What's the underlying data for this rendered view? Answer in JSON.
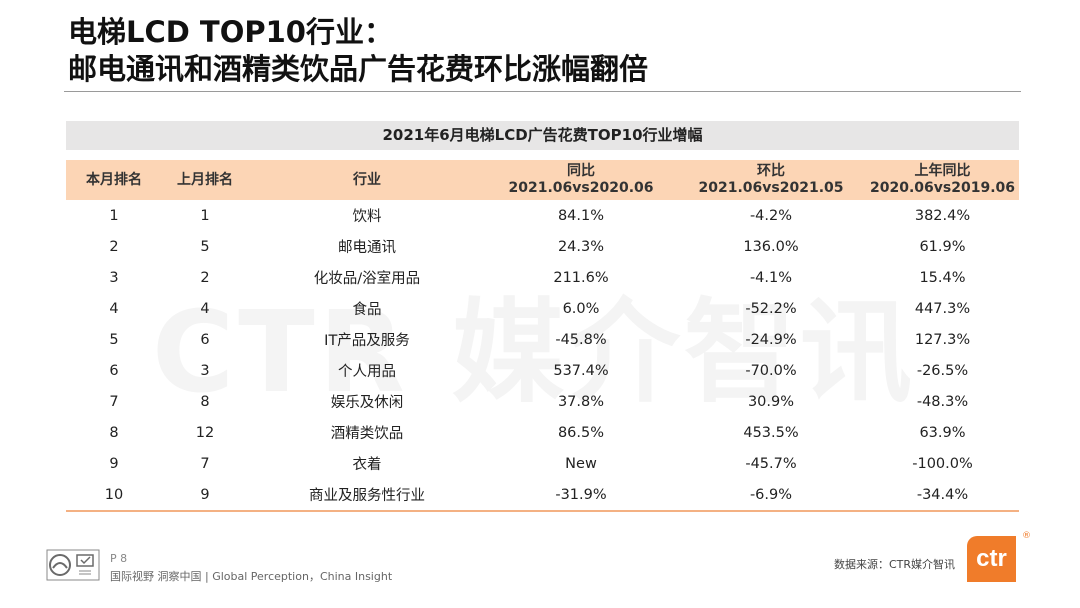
{
  "title": {
    "line1": "电梯LCD TOP10行业：",
    "line2": "邮电通讯和酒精类饮品广告花费环比涨幅翻倍"
  },
  "watermark": "CTR 媒介智讯",
  "table": {
    "caption": "2021年6月电梯LCD广告花费TOP10行业增幅",
    "headers": {
      "rank_this": "本月排名",
      "rank_last": "上月排名",
      "industry": "行业",
      "yoy": "同比",
      "yoy_sub": "2021.06vs2020.06",
      "mom": "环比",
      "mom_sub": "2021.06vs2021.05",
      "prev_yoy": "上年同比",
      "prev_yoy_sub": "2020.06vs2019.06"
    },
    "rows": [
      {
        "rank": "1",
        "last": "1",
        "industry": "饮料",
        "yoy": "84.1%",
        "mom": "-4.2%",
        "prev": "382.4%"
      },
      {
        "rank": "2",
        "last": "5",
        "industry": "邮电通讯",
        "yoy": "24.3%",
        "mom": "136.0%",
        "prev": "61.9%"
      },
      {
        "rank": "3",
        "last": "2",
        "industry": "化妆品/浴室用品",
        "yoy": "211.6%",
        "mom": "-4.1%",
        "prev": "15.4%"
      },
      {
        "rank": "4",
        "last": "4",
        "industry": "食品",
        "yoy": "6.0%",
        "mom": "-52.2%",
        "prev": "447.3%"
      },
      {
        "rank": "5",
        "last": "6",
        "industry": "IT产品及服务",
        "yoy": "-45.8%",
        "mom": "-24.9%",
        "prev": "127.3%"
      },
      {
        "rank": "6",
        "last": "3",
        "industry": "个人用品",
        "yoy": "537.4%",
        "mom": "-70.0%",
        "prev": "-26.5%"
      },
      {
        "rank": "7",
        "last": "8",
        "industry": "娱乐及休闲",
        "yoy": "37.8%",
        "mom": "30.9%",
        "prev": "-48.3%"
      },
      {
        "rank": "8",
        "last": "12",
        "industry": "酒精类饮品",
        "yoy": "86.5%",
        "mom": "453.5%",
        "prev": "63.9%"
      },
      {
        "rank": "9",
        "last": "7",
        "industry": "衣着",
        "yoy": "New",
        "mom": "-45.7%",
        "prev": "-100.0%"
      },
      {
        "rank": "10",
        "last": "9",
        "industry": "商业及服务性行业",
        "yoy": "-31.9%",
        "mom": "-6.9%",
        "prev": "-34.4%"
      }
    ]
  },
  "footer": {
    "page": "P 8",
    "slogan": "国际视野  洞察中国 | Global Perception，China Insight",
    "source": "数据来源：CTR媒介智讯",
    "logo_text": "ctr",
    "reg": "®"
  },
  "colors": {
    "header_bg": "#fcd5b5",
    "caption_bg": "#e7e6e6",
    "brand": "#f07c2a"
  }
}
